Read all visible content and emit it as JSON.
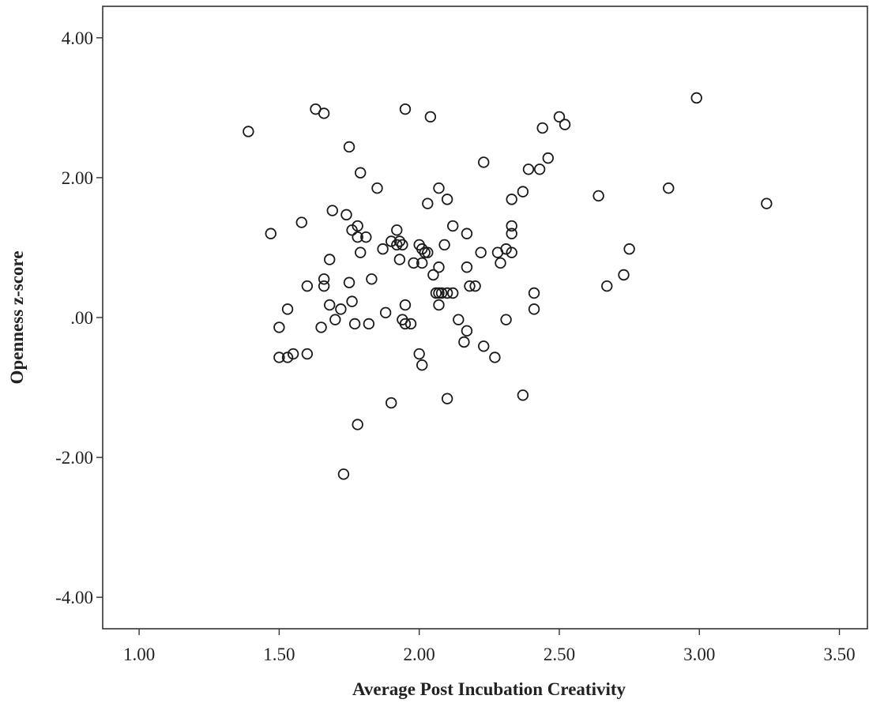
{
  "chart_data": {
    "type": "scatter",
    "title": "",
    "xlabel": "Average Post Incubation Creativity",
    "ylabel": "Openness z-score",
    "xlim": [
      0.87,
      3.6
    ],
    "ylim": [
      -4.45,
      4.45
    ],
    "x_ticks": [
      {
        "value": 1.0,
        "label": "1.00"
      },
      {
        "value": 1.5,
        "label": "1.50"
      },
      {
        "value": 2.0,
        "label": "2.00"
      },
      {
        "value": 2.5,
        "label": "2.50"
      },
      {
        "value": 3.0,
        "label": "3.00"
      },
      {
        "value": 3.5,
        "label": "3.50"
      }
    ],
    "y_ticks": [
      {
        "value": 4.0,
        "label": "4.00"
      },
      {
        "value": 2.0,
        "label": "2.00"
      },
      {
        "value": 0.0,
        "label": ".00"
      },
      {
        "value": -2.0,
        "label": "-2.00"
      },
      {
        "value": -4.0,
        "label": "-4.00"
      }
    ],
    "grid": false,
    "legend": "none",
    "series": [
      {
        "marker": "open-circle",
        "color": "#1a1a1a",
        "points": [
          [
            1.39,
            2.66
          ],
          [
            1.47,
            1.2
          ],
          [
            1.5,
            -0.14
          ],
          [
            1.5,
            -0.57
          ],
          [
            1.53,
            -0.57
          ],
          [
            1.53,
            0.12
          ],
          [
            1.55,
            -0.52
          ],
          [
            1.58,
            1.36
          ],
          [
            1.6,
            0.45
          ],
          [
            1.6,
            -0.52
          ],
          [
            1.63,
            2.98
          ],
          [
            1.65,
            -0.14
          ],
          [
            1.66,
            2.92
          ],
          [
            1.66,
            0.55
          ],
          [
            1.66,
            0.45
          ],
          [
            1.68,
            0.83
          ],
          [
            1.68,
            0.18
          ],
          [
            1.69,
            1.53
          ],
          [
            1.7,
            -0.03
          ],
          [
            1.72,
            0.12
          ],
          [
            1.73,
            -2.24
          ],
          [
            1.74,
            1.47
          ],
          [
            1.75,
            2.44
          ],
          [
            1.75,
            0.5
          ],
          [
            1.76,
            1.25
          ],
          [
            1.76,
            0.23
          ],
          [
            1.77,
            -0.09
          ],
          [
            1.78,
            1.31
          ],
          [
            1.78,
            1.15
          ],
          [
            1.78,
            -1.53
          ],
          [
            1.79,
            2.07
          ],
          [
            1.79,
            0.93
          ],
          [
            1.81,
            1.15
          ],
          [
            1.82,
            -0.09
          ],
          [
            1.83,
            0.55
          ],
          [
            1.85,
            1.85
          ],
          [
            1.87,
            0.98
          ],
          [
            1.88,
            0.07
          ],
          [
            1.9,
            1.09
          ],
          [
            1.9,
            -1.22
          ],
          [
            1.92,
            1.25
          ],
          [
            1.92,
            1.04
          ],
          [
            1.93,
            1.09
          ],
          [
            1.93,
            0.83
          ],
          [
            1.94,
            1.04
          ],
          [
            1.94,
            -0.03
          ],
          [
            1.95,
            2.98
          ],
          [
            1.95,
            0.18
          ],
          [
            1.95,
            -0.09
          ],
          [
            1.97,
            -0.09
          ],
          [
            1.98,
            0.78
          ],
          [
            2.0,
            1.04
          ],
          [
            2.0,
            -0.52
          ],
          [
            2.01,
            0.98
          ],
          [
            2.01,
            0.78
          ],
          [
            2.01,
            -0.68
          ],
          [
            2.02,
            0.93
          ],
          [
            2.03,
            1.63
          ],
          [
            2.03,
            0.93
          ],
          [
            2.04,
            2.87
          ],
          [
            2.05,
            0.61
          ],
          [
            2.06,
            0.35
          ],
          [
            2.07,
            1.85
          ],
          [
            2.07,
            0.72
          ],
          [
            2.07,
            0.35
          ],
          [
            2.07,
            0.18
          ],
          [
            2.08,
            0.35
          ],
          [
            2.09,
            1.04
          ],
          [
            2.1,
            1.69
          ],
          [
            2.1,
            0.35
          ],
          [
            2.1,
            -1.16
          ],
          [
            2.12,
            1.31
          ],
          [
            2.12,
            0.35
          ],
          [
            2.14,
            -0.03
          ],
          [
            2.16,
            -0.35
          ],
          [
            2.17,
            1.2
          ],
          [
            2.17,
            0.72
          ],
          [
            2.17,
            -0.19
          ],
          [
            2.18,
            0.45
          ],
          [
            2.2,
            0.45
          ],
          [
            2.22,
            0.93
          ],
          [
            2.23,
            2.22
          ],
          [
            2.23,
            -0.41
          ],
          [
            2.27,
            -0.57
          ],
          [
            2.28,
            0.93
          ],
          [
            2.29,
            0.78
          ],
          [
            2.31,
            0.98
          ],
          [
            2.31,
            -0.03
          ],
          [
            2.33,
            0.93
          ],
          [
            2.33,
            1.69
          ],
          [
            2.33,
            1.31
          ],
          [
            2.33,
            1.2
          ],
          [
            2.37,
            1.8
          ],
          [
            2.37,
            -1.11
          ],
          [
            2.39,
            2.12
          ],
          [
            2.41,
            0.35
          ],
          [
            2.41,
            0.12
          ],
          [
            2.43,
            2.12
          ],
          [
            2.44,
            2.71
          ],
          [
            2.46,
            2.28
          ],
          [
            2.5,
            2.87
          ],
          [
            2.52,
            2.76
          ],
          [
            2.64,
            1.74
          ],
          [
            2.67,
            0.45
          ],
          [
            2.73,
            0.61
          ],
          [
            2.75,
            0.98
          ],
          [
            2.89,
            1.85
          ],
          [
            2.99,
            3.14
          ],
          [
            3.24,
            1.63
          ]
        ]
      }
    ]
  }
}
